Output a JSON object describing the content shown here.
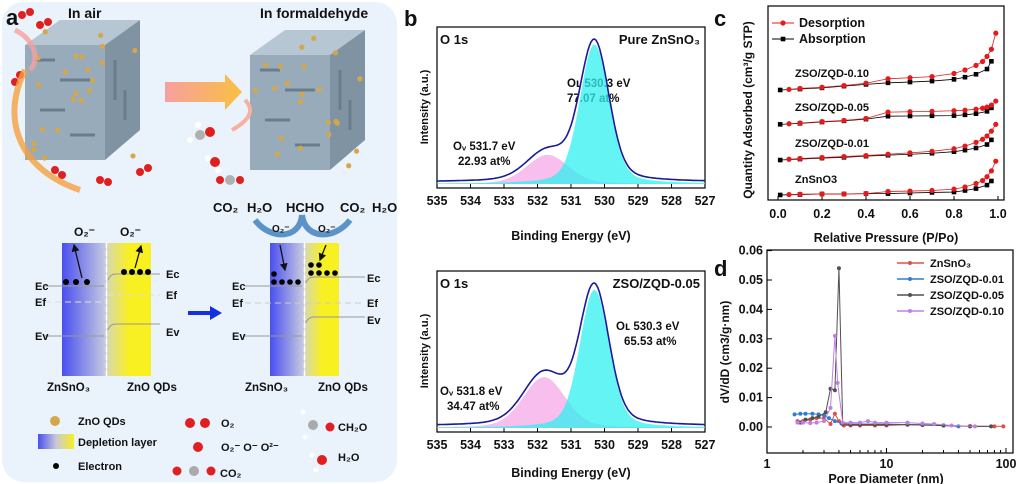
{
  "panel_labels": {
    "a": "a",
    "b": "b",
    "c": "c",
    "d": "d"
  },
  "panel_a": {
    "title_air": "In air",
    "title_formaldehyde": "In formaldehyde",
    "reaction": {
      "co2_left": "CO₂",
      "h2o_left": "H₂O",
      "hcho": "HCHO",
      "co2_right": "CO₂",
      "h2o_right": "H₂O",
      "o2_minus_1": "O₂⁻",
      "o2_minus_2": "O₂⁻"
    },
    "band_left": {
      "o2_minus_a": "O₂⁻",
      "o2_minus_b": "O₂⁻",
      "ec_l": "Ec",
      "ef_l": "Ef",
      "ev_l": "Ev",
      "ec_r": "Ec",
      "ef_r": "Ef",
      "ev_r": "Ev",
      "label_zso": "ZnSnO₃",
      "label_zno": "ZnO QDs"
    },
    "band_right": {
      "ec_l": "Ec",
      "ef_l": "Ef",
      "ev_l": "Ev",
      "ec_r": "Ec",
      "ef_r": "Ef",
      "ev_r": "Ev",
      "label_zso": "ZnSnO₃",
      "label_zno": "ZnO QDs"
    },
    "legend": {
      "zno_qds": "ZnO QDs",
      "depletion": "Depletion layer",
      "electron": "Electron",
      "o2": "O₂",
      "oxy_species": "O₂⁻  O⁻  O²⁻",
      "co2": "CO₂",
      "ch2o": "CH₂O",
      "h2o": "H₂O"
    },
    "colors": {
      "background": "#eaf2fb",
      "zno_qd": "#d4a84a",
      "cube": "#8fa3b3",
      "oxygen": "#e02020",
      "carbon": "#a0a0a0",
      "zso_band": "#4a4ff0",
      "zno_band": "#f8f020",
      "arrow_orange": "#f5a040",
      "arrow_blue": "#1530e0"
    }
  },
  "chart_data": [
    {
      "id": "b-top",
      "type": "area",
      "title": "O 1s",
      "sample": "Pure ZnSnO₃",
      "xlabel": "Binding Energy (eV)",
      "ylabel": "Intensity (a.u.)",
      "xlim": [
        535,
        527
      ],
      "xticks": [
        "535",
        "534",
        "533",
        "532",
        "531",
        "530",
        "529",
        "528",
        "527"
      ],
      "peaks": [
        {
          "name": "Ov",
          "label": "Oᵥ 531.7 eV",
          "at": "22.93 at%",
          "center": 531.7,
          "fraction": 0.2293,
          "color": "#f5a8e8"
        },
        {
          "name": "OL",
          "label": "Oʟ 530.3 eV",
          "at": "77.07 at%",
          "center": 530.3,
          "fraction": 0.7707,
          "color": "#30f0f0"
        }
      ],
      "envelope_color": "#1a1a9a"
    },
    {
      "id": "b-bottom",
      "type": "area",
      "title": "O 1s",
      "sample": "ZSO/ZQD-0.05",
      "xlabel": "Binding Energy (eV)",
      "ylabel": "Intensity (a.u.)",
      "xlim": [
        535,
        527
      ],
      "xticks": [
        "535",
        "534",
        "533",
        "532",
        "531",
        "530",
        "529",
        "528",
        "527"
      ],
      "peaks": [
        {
          "name": "Ov",
          "label": "Oᵥ 531.8 eV",
          "at": "34.47 at%",
          "center": 531.8,
          "fraction": 0.3447,
          "color": "#f5a8e8"
        },
        {
          "name": "OL",
          "label": "Oʟ 530.3 eV",
          "at": "65.53 at%",
          "center": 530.3,
          "fraction": 0.6553,
          "color": "#30f0f0"
        }
      ],
      "envelope_color": "#1a1a9a"
    },
    {
      "id": "c",
      "type": "line",
      "xlabel": "Relative Pressure (P/Po)",
      "ylabel": "Quantity Adsorbed (cm³/g STP)",
      "xlim": [
        0,
        1
      ],
      "ylim": [
        0,
        100
      ],
      "xticks": [
        "0.0",
        "0.2",
        "0.4",
        "0.6",
        "0.8",
        "1.0"
      ],
      "legend": {
        "placement": "top-left",
        "desorption": "Desorption",
        "absorption": "Absorption"
      },
      "colors": {
        "desorption": "#e41a1c",
        "absorption": "#000000"
      },
      "series": [
        {
          "name": "ZnSnO3",
          "absorption": {
            "x": [
              0.01,
              0.1,
              0.2,
              0.3,
              0.4,
              0.5,
              0.6,
              0.7,
              0.8,
              0.85,
              0.9,
              0.95,
              0.97
            ],
            "y": [
              2.6,
              2.8,
              3.1,
              3.1,
              3.3,
              3.3,
              3.6,
              3.9,
              4.1,
              4.9,
              5.9,
              7.7,
              9.8
            ]
          },
          "desorption": {
            "x": [
              0.05,
              0.1,
              0.2,
              0.3,
              0.4,
              0.5,
              0.6,
              0.7,
              0.8,
              0.85,
              0.9,
              0.93,
              0.95,
              0.97,
              0.99
            ],
            "y": [
              2.8,
              3.0,
              3.1,
              3.1,
              3.3,
              4.4,
              4.6,
              4.9,
              5.6,
              6.7,
              8.5,
              10,
              12,
              15,
              20
            ]
          }
        },
        {
          "name": "ZSO/ZQD-0.01",
          "absorption": {
            "x": [
              0.01,
              0.1,
              0.2,
              0.3,
              0.4,
              0.5,
              0.6,
              0.7,
              0.8,
              0.85,
              0.9,
              0.95,
              0.97
            ],
            "y": [
              20.6,
              21.1,
              21.6,
              22,
              22.6,
              23.1,
              23.6,
              24.1,
              24.9,
              25.7,
              26.8,
              28.6,
              31
            ]
          },
          "desorption": {
            "x": [
              0.05,
              0.1,
              0.2,
              0.3,
              0.4,
              0.5,
              0.6,
              0.7,
              0.8,
              0.85,
              0.9,
              0.93,
              0.95,
              0.97,
              0.99
            ],
            "y": [
              21,
              21.4,
              21.9,
              22.4,
              22.9,
              23.6,
              24.3,
              25.1,
              26.4,
              27.8,
              29.7,
              31.3,
              33,
              35.5,
              39
            ]
          }
        },
        {
          "name": "ZSO/ZQD-0.05",
          "absorption": {
            "x": [
              0.01,
              0.1,
              0.2,
              0.3,
              0.4,
              0.5,
              0.6,
              0.7,
              0.8,
              0.85,
              0.9,
              0.95,
              0.97
            ],
            "y": [
              39,
              39.5,
              40.2,
              40.8,
              41.7,
              43.2,
              43.3,
              43.4,
              43.5,
              43.9,
              44.5,
              45.7,
              47.5
            ]
          },
          "desorption": {
            "x": [
              0.05,
              0.1,
              0.2,
              0.3,
              0.4,
              0.5,
              0.6,
              0.7,
              0.8,
              0.85,
              0.9,
              0.93,
              0.95,
              0.97,
              0.99
            ],
            "y": [
              39.3,
              39.7,
              40.4,
              41,
              42,
              45.3,
              45.5,
              45.7,
              46,
              46.3,
              46.8,
              47.3,
              47.9,
              48.9,
              51
            ]
          }
        },
        {
          "name": "ZSO/ZQD-0.10",
          "absorption": {
            "x": [
              0.01,
              0.1,
              0.2,
              0.3,
              0.4,
              0.5,
              0.6,
              0.7,
              0.8,
              0.85,
              0.9,
              0.95,
              0.97
            ],
            "y": [
              56.7,
              57.2,
              57.8,
              58.7,
              59.6,
              60.4,
              60.8,
              61.3,
              62.2,
              63.3,
              64.8,
              67.5,
              71.5
            ]
          },
          "desorption": {
            "x": [
              0.05,
              0.1,
              0.2,
              0.3,
              0.4,
              0.5,
              0.6,
              0.7,
              0.8,
              0.85,
              0.9,
              0.93,
              0.95,
              0.97,
              0.99
            ],
            "y": [
              57,
              57.5,
              58.1,
              59,
              60.2,
              62.5,
              63,
              63.6,
              65.2,
              67,
              69.4,
              71.4,
              74,
              77.7,
              86
            ]
          }
        }
      ]
    },
    {
      "id": "d",
      "type": "line",
      "xlabel": "Pore Diameter (nm)",
      "ylabel": "dV/dD (cm3/g·nm)",
      "xscale": "log",
      "xlim": [
        1,
        100
      ],
      "ylim": [
        -0.005,
        0.06
      ],
      "xticks": [
        "1",
        "10",
        "100"
      ],
      "yticks": [
        "0.00",
        "0.01",
        "0.02",
        "0.03",
        "0.04",
        "0.05",
        "0.06"
      ],
      "legend": {
        "placement": "top-right"
      },
      "series": [
        {
          "name": "ZnSnO₃",
          "color": "#e0504a",
          "x": [
            1.8,
            2,
            2.3,
            2.6,
            3,
            3.4,
            3.7,
            4,
            4.4,
            5,
            6,
            8,
            10,
            15,
            20,
            30,
            50,
            80,
            95
          ],
          "y": [
            0.002,
            0.002,
            0.0025,
            0.003,
            0.003,
            0.001,
            0.0045,
            0.002,
            0.0005,
            0.0005,
            0.0005,
            0.0005,
            0.0005,
            0.0008,
            0.0008,
            0.0005,
            0.0003,
            0.0002,
            0.0002
          ]
        },
        {
          "name": "ZSO/ZQD-0.01",
          "color": "#2f7fd0",
          "x": [
            1.7,
            1.9,
            2.1,
            2.4,
            2.7,
            3,
            3.3,
            3.7,
            4.2,
            5,
            6,
            8,
            10,
            15,
            20,
            30,
            40
          ],
          "y": [
            0.0043,
            0.0045,
            0.0045,
            0.0045,
            0.0043,
            0.004,
            0.003,
            0.002,
            0.0012,
            0.001,
            0.001,
            0.001,
            0.001,
            0.0008,
            0.0007,
            0.0005,
            0.0002
          ]
        },
        {
          "name": "ZSO/ZQD-0.05",
          "color": "#505050",
          "x": [
            1.9,
            2.1,
            2.4,
            2.7,
            3.1,
            3.4,
            3.7,
            4.0,
            4.3,
            5,
            6,
            8,
            10,
            15,
            20,
            30,
            50,
            75
          ],
          "y": [
            0.0015,
            0.0025,
            0.003,
            0.0035,
            0.005,
            0.013,
            0.0125,
            0.054,
            0.001,
            0.0008,
            0.0008,
            0.0008,
            0.0008,
            0.0008,
            0.0007,
            0.0005,
            0.0002,
            0.0002
          ]
        },
        {
          "name": "ZSO/ZQD-0.10",
          "color": "#c080e0",
          "x": [
            1.8,
            2,
            2.3,
            2.6,
            3,
            3.4,
            3.7,
            3.9,
            4.3,
            5,
            6,
            7,
            8,
            10,
            15,
            20,
            25,
            35,
            55
          ],
          "y": [
            0.0015,
            0.0015,
            0.0013,
            0.0015,
            0.002,
            0.0065,
            0.031,
            0.015,
            0.0015,
            0.0015,
            0.0015,
            0.002,
            0.0015,
            0.0015,
            0.0015,
            0.0012,
            0.001,
            0.0005,
            0.0002
          ]
        }
      ]
    }
  ]
}
